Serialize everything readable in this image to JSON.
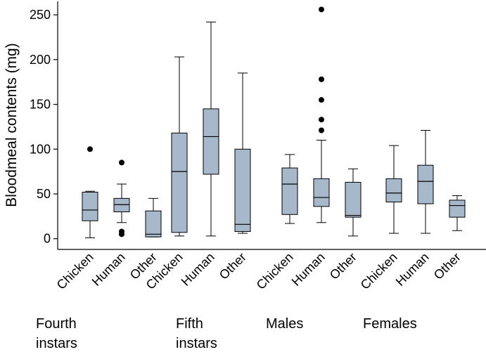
{
  "chart_data": {
    "type": "box",
    "ylabel": "Bloodmeal contents (mg)",
    "ylim": [
      -12,
      265
    ],
    "y_ticks": [
      0,
      50,
      100,
      150,
      200,
      250
    ],
    "box_color": "#a7b8cb",
    "groups": [
      {
        "label_lines": [
          "Fourth",
          "instars"
        ],
        "categories": [
          {
            "label": "Chicken",
            "min": 1,
            "q1": 20,
            "median": 32,
            "q3": 52,
            "max": 53,
            "outliers": [
              100
            ]
          },
          {
            "label": "Human",
            "min": 18,
            "q1": 30,
            "median": 38,
            "q3": 45,
            "max": 61,
            "outliers": [
              85,
              8,
              5
            ]
          },
          {
            "label": "Other",
            "min": 2,
            "q1": 2,
            "median": 5,
            "q3": 31,
            "max": 45,
            "outliers": []
          }
        ]
      },
      {
        "label_lines": [
          "Fifth",
          "instars"
        ],
        "categories": [
          {
            "label": "Chicken",
            "min": 3,
            "q1": 7,
            "median": 75,
            "q3": 118,
            "max": 203,
            "outliers": []
          },
          {
            "label": "Human",
            "min": 3,
            "q1": 72,
            "median": 114,
            "q3": 145,
            "max": 242,
            "outliers": []
          },
          {
            "label": "Other",
            "min": 6,
            "q1": 8,
            "median": 16,
            "q3": 100,
            "max": 185,
            "outliers": []
          }
        ]
      },
      {
        "label_lines": [
          "Males"
        ],
        "categories": [
          {
            "label": "Chicken",
            "min": 17,
            "q1": 27,
            "median": 61,
            "q3": 79,
            "max": 94,
            "outliers": []
          },
          {
            "label": "Human",
            "min": 18,
            "q1": 36,
            "median": 46,
            "q3": 67,
            "max": 110,
            "outliers": [
              256,
              178,
              155,
              133,
              121
            ]
          },
          {
            "label": "Other",
            "min": 3,
            "q1": 24,
            "median": 26,
            "q3": 63,
            "max": 78,
            "outliers": []
          }
        ]
      },
      {
        "label_lines": [
          "Females"
        ],
        "categories": [
          {
            "label": "Chicken",
            "min": 6,
            "q1": 41,
            "median": 51,
            "q3": 67,
            "max": 104,
            "outliers": []
          },
          {
            "label": "Human",
            "min": 6,
            "q1": 39,
            "median": 64,
            "q3": 82,
            "max": 121,
            "outliers": []
          },
          {
            "label": "Other",
            "min": 9,
            "q1": 24,
            "median": 37,
            "q3": 43,
            "max": 48,
            "outliers": []
          }
        ]
      }
    ]
  }
}
